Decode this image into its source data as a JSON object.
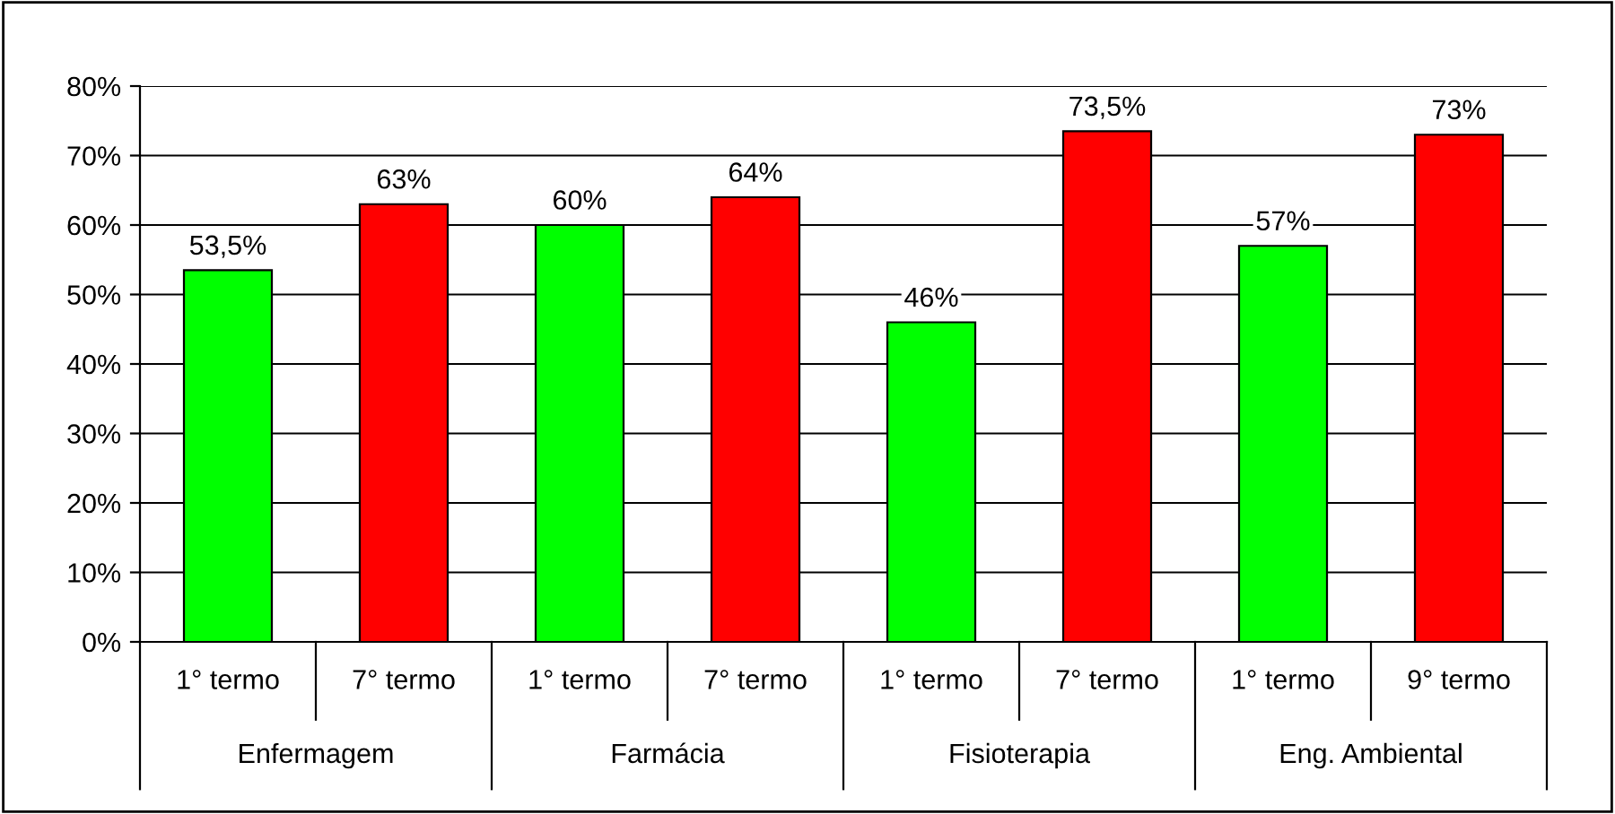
{
  "chart_data": {
    "type": "bar",
    "categories": [
      "1° termo",
      "7° termo",
      "1° termo",
      "7° termo",
      "1° termo",
      "7° termo",
      "1° termo",
      "9° termo"
    ],
    "values": [
      53.5,
      63,
      60,
      64,
      46,
      73.5,
      57,
      73
    ],
    "value_labels": [
      "53,5%",
      "63%",
      "60%",
      "64%",
      "46%",
      "73,5%",
      "57%",
      "73%"
    ],
    "colors": [
      "#00ff00",
      "#ff0000",
      "#00ff00",
      "#ff0000",
      "#00ff00",
      "#ff0000",
      "#00ff00",
      "#ff0000"
    ],
    "annotations": [
      "Enfermagem",
      "Farmácia",
      "Fisioterapia",
      "Eng. Ambiental"
    ],
    "ylim": [
      0,
      80
    ],
    "yticks": [
      {
        "value": 0,
        "label": "0%"
      },
      {
        "value": 10,
        "label": "10%"
      },
      {
        "value": 20,
        "label": "20%"
      },
      {
        "value": 30,
        "label": "30%"
      },
      {
        "value": 40,
        "label": "40%"
      },
      {
        "value": 50,
        "label": "50%"
      },
      {
        "value": 60,
        "label": "60%"
      },
      {
        "value": 70,
        "label": "70%"
      },
      {
        "value": 80,
        "label": "80%"
      }
    ],
    "grid": "y"
  }
}
